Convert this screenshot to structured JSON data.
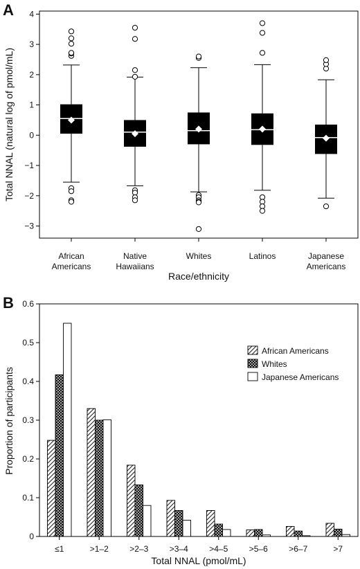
{
  "panels": {
    "a_label": "A",
    "b_label": "B"
  },
  "chart_data": [
    {
      "type": "box",
      "ylabel": "Total NNAL (natural log of pmol/mL)",
      "xlabel": "Race/ethnicity",
      "ylim": [
        -3.4,
        4.1
      ],
      "yticks": [
        -3,
        -2,
        -1,
        0,
        1,
        2,
        3,
        4
      ],
      "categories": [
        {
          "line1": "African",
          "line2": "Americans"
        },
        {
          "line1": "Native",
          "line2": "Hawaiians"
        },
        {
          "line1": "Whites",
          "line2": ""
        },
        {
          "line1": "Latinos",
          "line2": ""
        },
        {
          "line1": "Japanese",
          "line2": "Americans"
        }
      ],
      "boxes": [
        {
          "whisker_low": -1.55,
          "q1": 0.05,
          "median": 0.55,
          "q3": 1.02,
          "whisker_high": 2.32,
          "mean": 0.5,
          "outliers": [
            -1.75,
            -1.85,
            -2.15,
            -2.2,
            2.62,
            2.7,
            2.72,
            3.02,
            3.2,
            3.43
          ]
        },
        {
          "whisker_low": -1.67,
          "q1": -0.38,
          "median": 0.1,
          "q3": 0.5,
          "whisker_high": 1.92,
          "mean": 0.05,
          "outliers": [
            -1.82,
            -1.9,
            -2.05,
            -2.15,
            1.93,
            2.15,
            3.18,
            3.55
          ]
        },
        {
          "whisker_low": -1.87,
          "q1": -0.3,
          "median": 0.15,
          "q3": 0.75,
          "whisker_high": 2.23,
          "mean": 0.2,
          "outliers": [
            -1.98,
            -2.05,
            -2.15,
            -2.2,
            -2.22,
            -3.1,
            2.55,
            2.6
          ]
        },
        {
          "whisker_low": -1.82,
          "q1": -0.32,
          "median": 0.18,
          "q3": 0.72,
          "whisker_high": 2.33,
          "mean": 0.2,
          "outliers": [
            -2.05,
            -2.2,
            -2.35,
            -2.5,
            2.72,
            3.38,
            3.7
          ]
        },
        {
          "whisker_low": -2.08,
          "q1": -0.62,
          "median": -0.08,
          "q3": 0.35,
          "whisker_high": 1.83,
          "mean": -0.1,
          "outliers": [
            -2.35,
            2.2,
            2.35,
            2.48
          ]
        }
      ]
    },
    {
      "type": "bar",
      "ylabel": "Proportion of participants",
      "xlabel": "Total NNAL (pmol/mL)",
      "ylim": [
        0,
        0.6
      ],
      "yticks": [
        "0",
        "0.1",
        "0.2",
        "0.3",
        "0.4",
        "0.5",
        "0.6"
      ],
      "categories": [
        "≤1",
        ">1–2",
        ">2–3",
        ">3–4",
        ">4–5",
        ">5–6",
        ">6–7",
        ">7"
      ],
      "series": [
        {
          "name": "African Americans",
          "pattern": "diagonal-hatch",
          "values": [
            0.248,
            0.33,
            0.184,
            0.093,
            0.067,
            0.017,
            0.026,
            0.034
          ]
        },
        {
          "name": "Whites",
          "pattern": "crosshatch",
          "values": [
            0.417,
            0.3,
            0.133,
            0.067,
            0.032,
            0.018,
            0.014,
            0.019
          ]
        },
        {
          "name": "Japanese Americans",
          "pattern": "open",
          "values": [
            0.55,
            0.301,
            0.08,
            0.042,
            0.018,
            0.004,
            0.002,
            0.005
          ]
        }
      ],
      "legend_position": "right"
    }
  ]
}
